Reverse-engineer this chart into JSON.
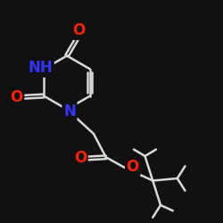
{
  "background_color": "#111111",
  "bond_color": "#d8d8d8",
  "bond_width": 1.8,
  "atom_colors": {
    "O": "#ff2200",
    "N": "#3333ff",
    "C": "#d8d8d8"
  },
  "font_size_N": 12,
  "font_size_O": 12,
  "font_size_NH": 12
}
